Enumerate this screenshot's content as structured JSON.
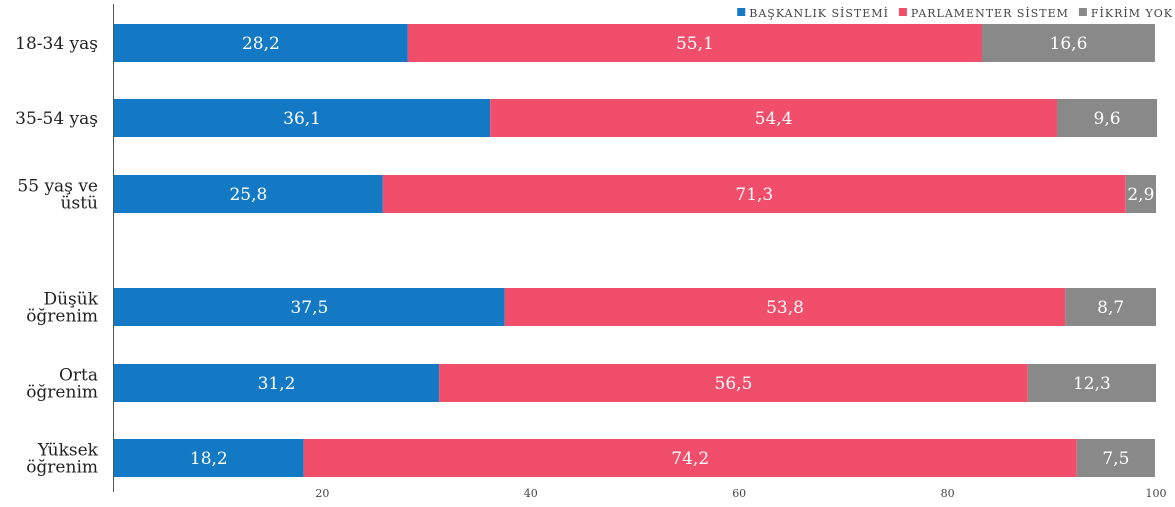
{
  "chart_data": {
    "type": "bar",
    "orientation": "horizontal",
    "stacked": true,
    "categories": [
      "18-34 yaş",
      "35-54 yaş",
      "55 yaş ve üstü",
      "Düşük öğrenim",
      "Orta öğrenim",
      "Yüksek öğrenim"
    ],
    "category_lines": [
      [
        "18-34 yaş"
      ],
      [
        "35-54 yaş"
      ],
      [
        "55 yaş ve",
        "üstü"
      ],
      [
        "Düşük",
        "öğrenim"
      ],
      [
        "Orta",
        "öğrenim"
      ],
      [
        "Yüksek",
        "öğrenim"
      ]
    ],
    "series": [
      {
        "name": "BAŞKANLIK SİSTEMİ",
        "color": "#1479c4",
        "values": [
          28.2,
          36.1,
          25.8,
          37.5,
          31.2,
          18.2
        ],
        "labels": [
          "28,2",
          "36,1",
          "25,8",
          "37,5",
          "31,2",
          "18,2"
        ]
      },
      {
        "name": "PARLAMENTER SİSTEM",
        "color": "#f04e6b",
        "values": [
          55.1,
          54.4,
          71.3,
          53.8,
          56.5,
          74.2
        ],
        "labels": [
          "55,1",
          "54,4",
          "71,3",
          "53,8",
          "56,5",
          "74,2"
        ]
      },
      {
        "name": "FİKRİM YOK",
        "color": "#898989",
        "values": [
          16.6,
          9.6,
          2.9,
          8.7,
          12.3,
          7.5
        ],
        "labels": [
          "16,6",
          "9,6",
          "2,9",
          "8,7",
          "12,3",
          "7,5"
        ]
      }
    ],
    "xlim": [
      0,
      100
    ],
    "xticks": [
      20,
      40,
      60,
      80,
      100
    ],
    "xtick_labels": [
      "20",
      "40",
      "60",
      "80",
      "100"
    ],
    "legend_position": "top-right",
    "grid": false
  }
}
